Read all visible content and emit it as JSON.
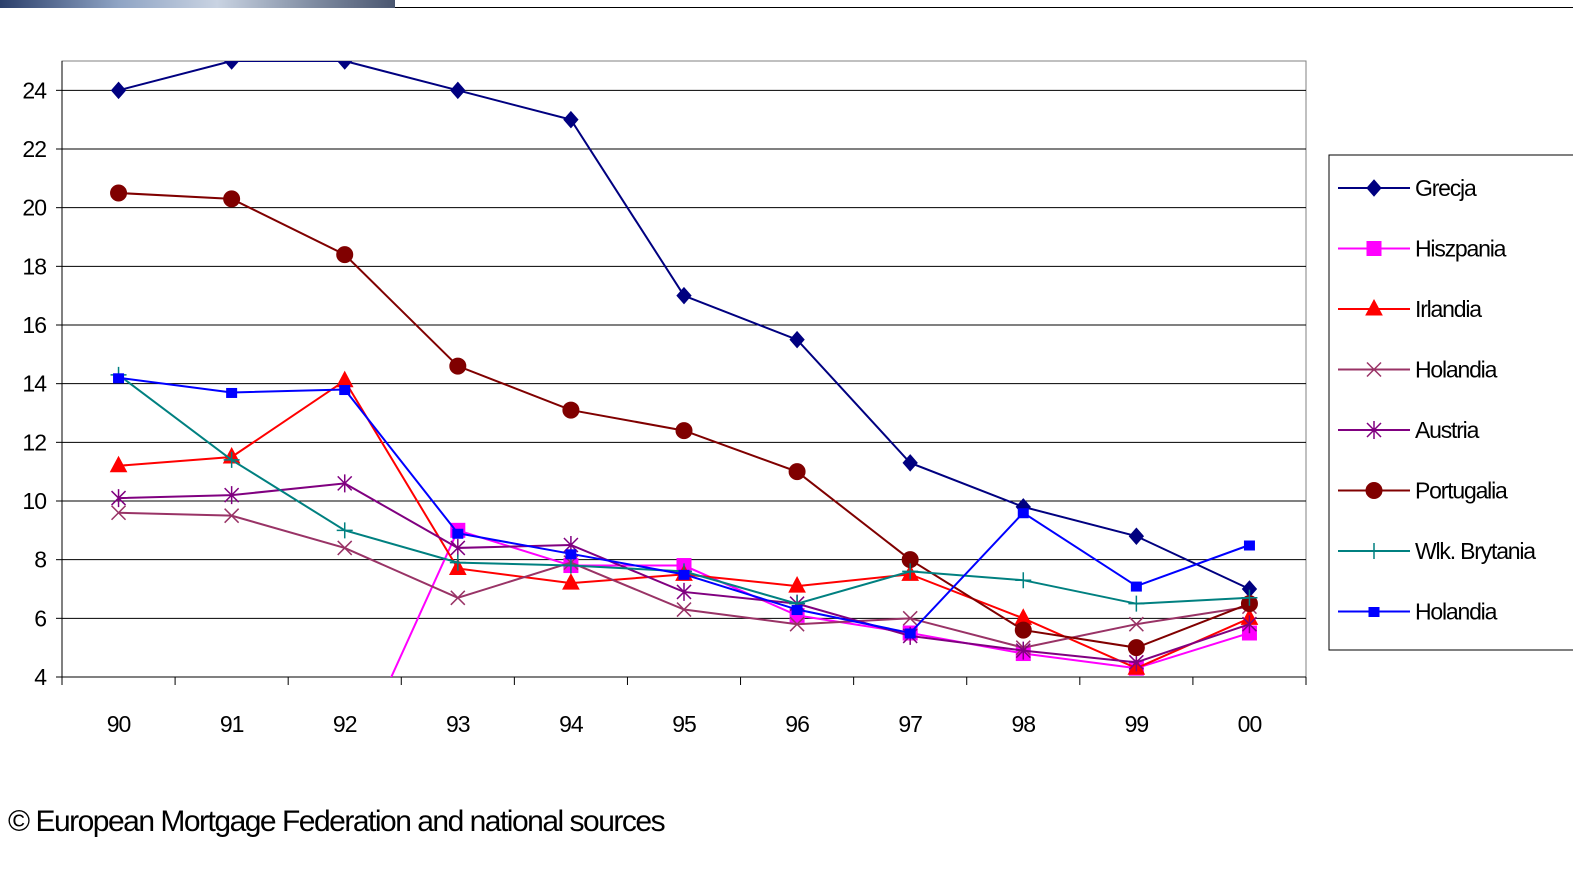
{
  "chart_data": {
    "type": "line",
    "title": "",
    "xlabel": "",
    "ylabel": "",
    "categories": [
      "90",
      "91",
      "92",
      "93",
      "94",
      "95",
      "96",
      "97",
      "98",
      "99",
      "00"
    ],
    "ylim": [
      4,
      25
    ],
    "yticks": [
      "4",
      "6",
      "8",
      "10",
      "12",
      "14",
      "16",
      "18",
      "20",
      "22",
      "24"
    ],
    "grid": "horizontal",
    "legend_position": "right",
    "series": [
      {
        "name": "Grecja",
        "color": "#000080",
        "marker": "diamond",
        "values": [
          24,
          25,
          25,
          24,
          23,
          17,
          15.5,
          11.3,
          9.8,
          8.8,
          7
        ]
      },
      {
        "name": "Hiszpania",
        "color": "#ff00ff",
        "marker": "square",
        "values": [
          null,
          null,
          0.5,
          9,
          7.8,
          7.8,
          6.1,
          5.5,
          4.8,
          4.3,
          5.5
        ]
      },
      {
        "name": "Irlandia",
        "color": "#ff0000",
        "marker": "triangle",
        "values": [
          11.2,
          11.5,
          14.1,
          7.7,
          7.2,
          7.5,
          7.1,
          7.5,
          6,
          4.3,
          6
        ]
      },
      {
        "name": "Holandia",
        "color": "#993366",
        "marker": "x",
        "values": [
          9.6,
          9.5,
          8.4,
          6.7,
          7.9,
          6.3,
          5.8,
          6,
          5,
          5.8,
          6.4
        ]
      },
      {
        "name": "Austria",
        "color": "#800080",
        "marker": "star",
        "values": [
          10.1,
          10.2,
          10.6,
          8.4,
          8.5,
          6.9,
          6.5,
          5.4,
          4.9,
          4.5,
          5.8
        ]
      },
      {
        "name": "Portugalia",
        "color": "#800000",
        "marker": "circle",
        "values": [
          20.5,
          20.3,
          18.4,
          14.6,
          13.1,
          12.4,
          11,
          8,
          5.6,
          5,
          6.5
        ]
      },
      {
        "name": "Wlk. Brytania",
        "color": "#008080",
        "marker": "plus",
        "values": [
          14.3,
          11.4,
          9,
          7.9,
          7.8,
          7.6,
          6.5,
          7.6,
          7.3,
          6.5,
          6.7
        ]
      },
      {
        "name": "Holandia",
        "color": "#0000ff",
        "marker": "smallsquare",
        "values": [
          14.2,
          13.7,
          13.8,
          8.9,
          8.2,
          7.5,
          6.3,
          5.5,
          9.6,
          7.1,
          8.5
        ]
      }
    ]
  },
  "footer": {
    "source": "© European Mortgage Federation and national sources"
  }
}
